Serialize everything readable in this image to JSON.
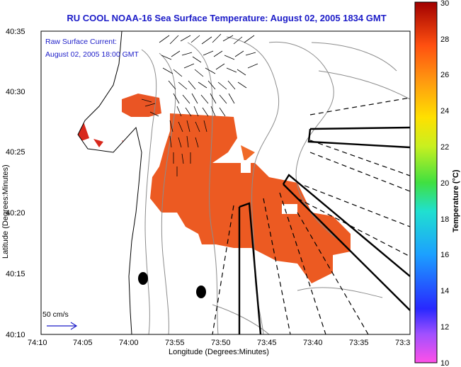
{
  "title": "RU COOL  NOAA-16  Sea Surface Temperature:  August 02, 2005 1834 GMT",
  "legend": {
    "line1": "Raw Surface Current:",
    "line2": "August 02, 2005 18:00 GMT",
    "scale_label": "50 cm/s"
  },
  "xaxis": {
    "label": "Longitude (Degrees:Minutes)",
    "ticks": [
      "74:10",
      "74:05",
      "74:00",
      "73:55",
      "73:50",
      "73:45",
      "73:40",
      "73:35",
      "73:3"
    ]
  },
  "yaxis": {
    "label": "Latitude (Degrees:Minutes)",
    "ticks": [
      "40:35",
      "40:30",
      "40:25",
      "40:20",
      "40:15",
      "40:10"
    ]
  },
  "colorbar": {
    "label": "Temperature (°C)",
    "ticks": [
      "30",
      "28",
      "26",
      "24",
      "22",
      "20",
      "18",
      "16",
      "14",
      "12",
      "10"
    ],
    "range": [
      10,
      30
    ]
  },
  "colors": {
    "title": "#1c1cc8",
    "sst_warm": "#e8501c",
    "sst_hot": "#d8281c",
    "sst_mid": "#ee6a24",
    "land": "#ffffff",
    "contour": "#8c8c8c"
  }
}
